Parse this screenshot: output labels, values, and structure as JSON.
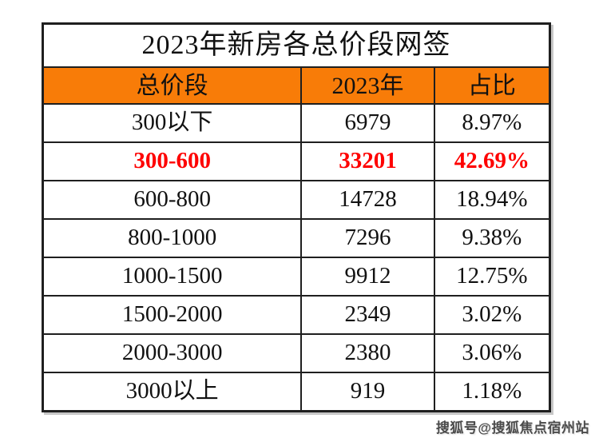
{
  "page": {
    "background": "#ffffff"
  },
  "table": {
    "title": "2023年新房各总价段网签",
    "columns": [
      "总价段",
      "2023年",
      "占比"
    ],
    "rows": [
      {
        "segment": "300以下",
        "count": "6979",
        "share": "8.97%",
        "highlight": false
      },
      {
        "segment": "300-600",
        "count": "33201",
        "share": "42.69%",
        "highlight": true
      },
      {
        "segment": "600-800",
        "count": "14728",
        "share": "18.94%",
        "highlight": false
      },
      {
        "segment": "800-1000",
        "count": "7296",
        "share": "9.38%",
        "highlight": false
      },
      {
        "segment": "1000-1500",
        "count": "9912",
        "share": "12.75%",
        "highlight": false
      },
      {
        "segment": "1500-2000",
        "count": "2349",
        "share": "3.02%",
        "highlight": false
      },
      {
        "segment": "2000-3000",
        "count": "2380",
        "share": "3.06%",
        "highlight": false
      },
      {
        "segment": "3000以上",
        "count": "919",
        "share": "1.18%",
        "highlight": false
      }
    ],
    "colors": {
      "header_bg": "#F87C08",
      "highlight_text": "#FE0000",
      "border": "#1f1f1f",
      "text": "#111111"
    }
  },
  "watermark": {
    "text": "搜狐号@搜狐焦点宿州站",
    "color": "#4b4b4b"
  },
  "chart_data": {
    "type": "table",
    "title": "2023年新房各总价段网签",
    "columns": [
      "总价段",
      "2023年",
      "占比"
    ],
    "rows": [
      [
        "300以下",
        6979,
        "8.97%"
      ],
      [
        "300-600",
        33201,
        "42.69%"
      ],
      [
        "600-800",
        14728,
        "18.94%"
      ],
      [
        "800-1000",
        7296,
        "9.38%"
      ],
      [
        "1000-1500",
        9912,
        "12.75%"
      ],
      [
        "1500-2000",
        2349,
        "3.02%"
      ],
      [
        "2000-3000",
        2380,
        "3.06%"
      ],
      [
        "3000以上",
        919,
        "1.18%"
      ]
    ],
    "highlighted_row": "300-600",
    "notes": "Row 300-600 emphasized in red; header row orange background"
  }
}
